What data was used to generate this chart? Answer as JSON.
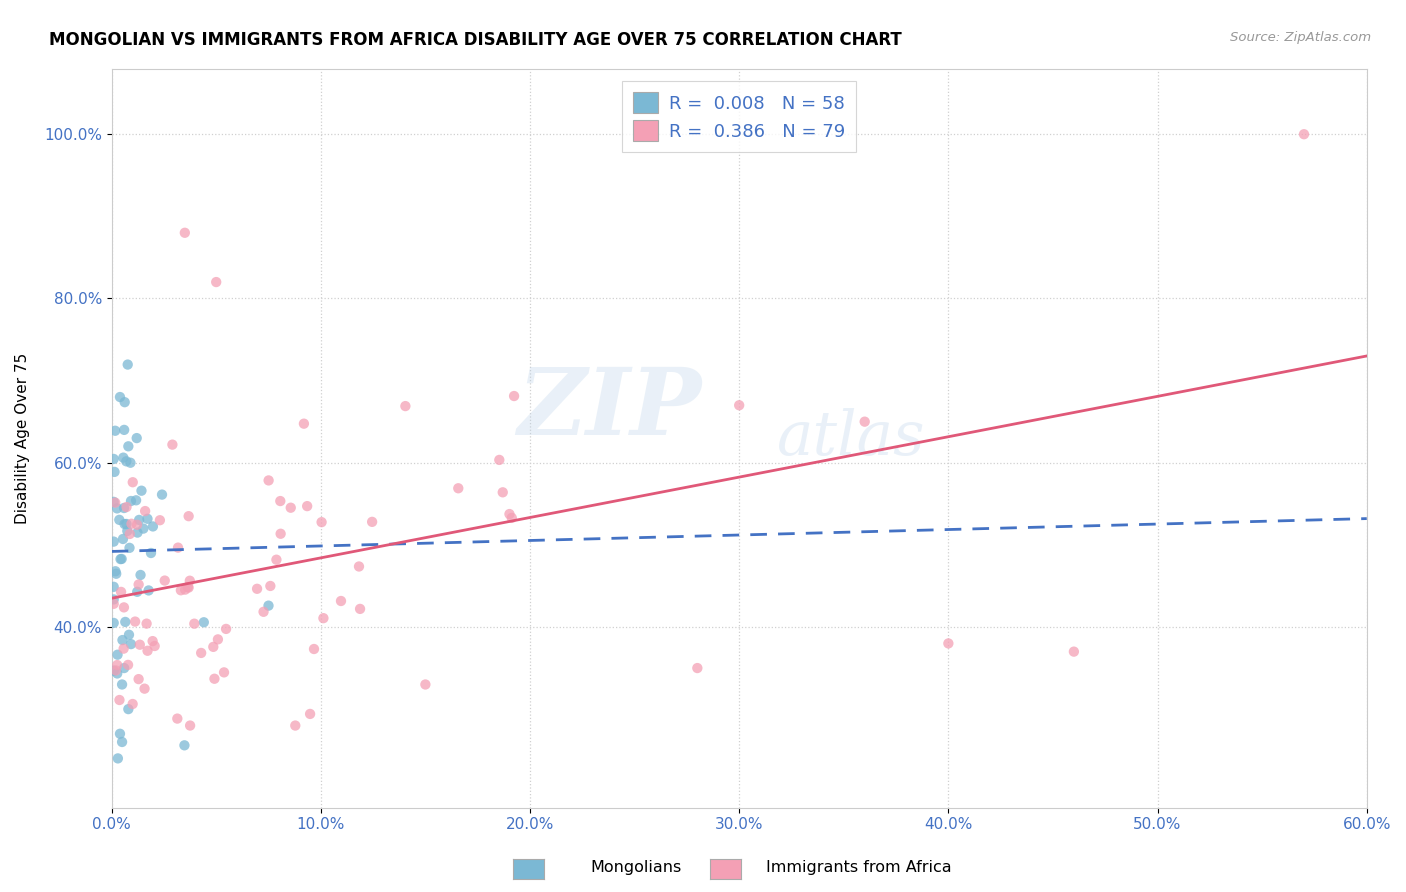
{
  "title": "MONGOLIAN VS IMMIGRANTS FROM AFRICA DISABILITY AGE OVER 75 CORRELATION CHART",
  "source": "Source: ZipAtlas.com",
  "ylabel_label": "Disability Age Over 75",
  "xlim": [
    0.0,
    0.6
  ],
  "ylim": [
    0.18,
    1.08
  ],
  "ytick_vals": [
    0.4,
    0.6,
    0.8,
    1.0
  ],
  "ytick_labels": [
    "40.0%",
    "60.0%",
    "80.0%",
    "100.0%"
  ],
  "xtick_vals": [
    0.0,
    0.1,
    0.2,
    0.3,
    0.4,
    0.5,
    0.6
  ],
  "xtick_labels": [
    "0.0%",
    "10.0%",
    "20.0%",
    "30.0%",
    "40.0%",
    "50.0%",
    "60.0%"
  ],
  "mongolian_color": "#7bb8d4",
  "africa_color": "#f4a0b5",
  "mongolian_line_color": "#4472c4",
  "africa_line_color": "#e05878",
  "background_color": "#ffffff",
  "grid_color": "#d0d0d0",
  "watermark_zip": "ZIP",
  "watermark_atlas": "atlas",
  "mongolian_R": 0.008,
  "africa_R": 0.386,
  "mongolian_N": 58,
  "africa_N": 79,
  "mon_line_x0": 0.0,
  "mon_line_y0": 0.492,
  "mon_line_x1": 0.6,
  "mon_line_y1": 0.532,
  "afr_line_x0": 0.0,
  "afr_line_y0": 0.435,
  "afr_line_x1": 0.6,
  "afr_line_y1": 0.73
}
